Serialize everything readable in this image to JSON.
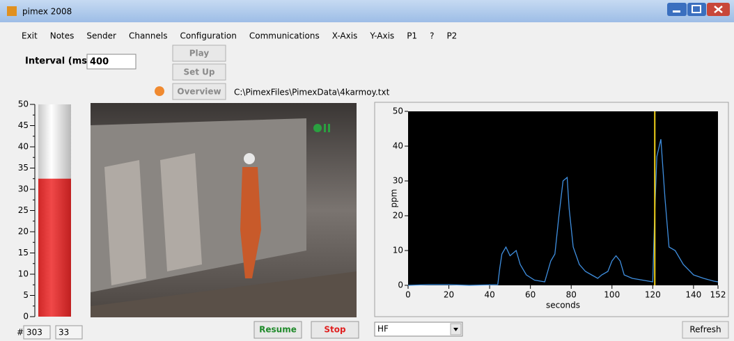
{
  "window": {
    "title": "pimex 2008"
  },
  "menu": [
    "Exit",
    "Notes",
    "Sender",
    "Channels",
    "Configuration",
    "Communications",
    "X-Axis",
    "Y-Axis",
    "P1",
    "?",
    "P2"
  ],
  "interval": {
    "label": "Interval (ms)",
    "value": "400"
  },
  "buttons": {
    "play": "Play",
    "setup": "Set Up",
    "overview": "Overview",
    "resume": "Resume",
    "stop": "Stop",
    "refresh": "Refresh"
  },
  "file_path": "C:\\PimexFiles\\PimexData\\4karmoy.txt",
  "counters": {
    "label": "#",
    "values": [
      "303",
      "33"
    ]
  },
  "channel_select": "HF",
  "chart_data": [
    {
      "type": "bar",
      "categories": [
        null
      ],
      "values": [
        32.5
      ],
      "color": "#e83a3a",
      "ylim": [
        0,
        50
      ],
      "yticks": [
        0,
        5,
        10,
        15,
        20,
        25,
        30,
        35,
        40,
        45,
        50
      ]
    },
    {
      "type": "line",
      "xlabel": "seconds",
      "ylabel": "ppm",
      "x": [
        0,
        10,
        20,
        30,
        44,
        45,
        46,
        48,
        50,
        53,
        55,
        58,
        62,
        67,
        68,
        70,
        72,
        74,
        76,
        78,
        79,
        81,
        84,
        87,
        90,
        93,
        95,
        98,
        100,
        102,
        104,
        106,
        110,
        115,
        120,
        121,
        122,
        124,
        126,
        128,
        131,
        135,
        140,
        145,
        150,
        152
      ],
      "values": [
        0,
        0.2,
        0.2,
        0,
        0.2,
        5,
        9,
        11,
        8.5,
        10,
        6,
        3,
        1.5,
        1,
        3,
        7,
        9,
        20,
        30,
        31,
        22,
        11,
        6,
        4,
        3,
        2,
        3,
        4,
        7,
        8.5,
        7,
        3,
        2,
        1.5,
        1,
        21,
        37,
        42,
        25,
        11,
        10,
        6,
        3,
        2,
        1.2,
        1
      ],
      "color": "#3f8fe0",
      "background": "#000000",
      "cursor_x": 121,
      "cursor_color": "#f2d21a",
      "xlim": [
        0,
        152
      ],
      "xticks": [
        0,
        20,
        40,
        60,
        80,
        100,
        120,
        140,
        152
      ],
      "ylim": [
        0,
        50
      ],
      "yticks": [
        0,
        10,
        20,
        30,
        40,
        50
      ]
    }
  ]
}
